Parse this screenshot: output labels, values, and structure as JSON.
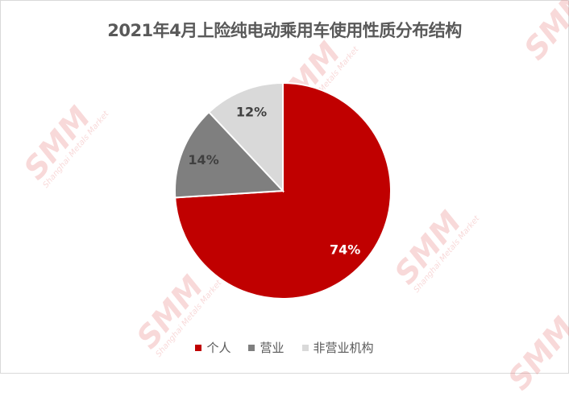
{
  "watermark": {
    "logo": "SMM",
    "subtitle": "Shanghai Metals Market"
  },
  "chart_data": {
    "type": "pie",
    "title": "2021年4月上险纯电动乘用车使用性质分布结构",
    "categories": [
      "个人",
      "营业",
      "非营业机构"
    ],
    "values": [
      74,
      14,
      12
    ],
    "labels": [
      "74%",
      "14%",
      "12%"
    ],
    "colors": [
      "#C00000",
      "#7F7F7F",
      "#D9D9D9"
    ],
    "start_angle": "12 o'clock",
    "direction": "clockwise",
    "legend_position": "bottom"
  }
}
